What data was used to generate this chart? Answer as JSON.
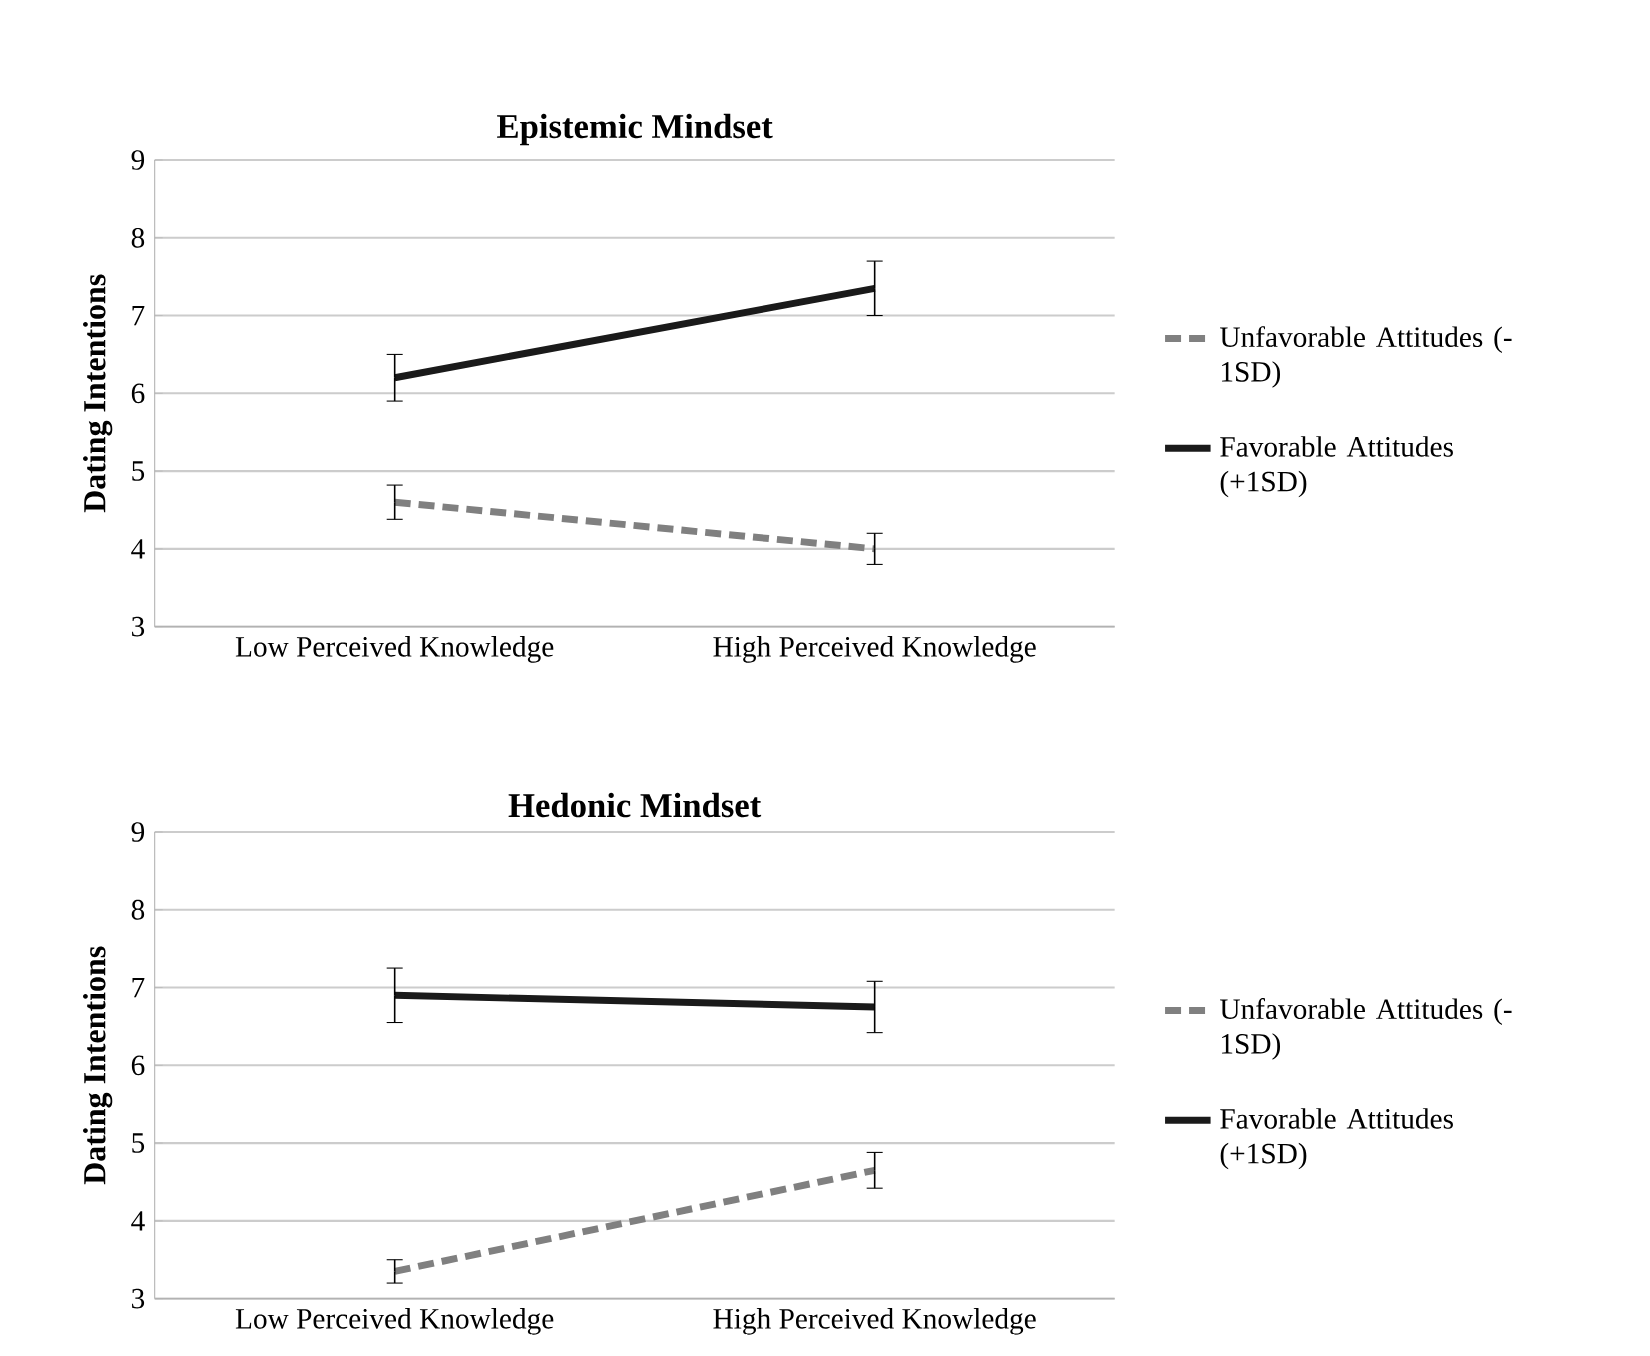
{
  "chart_data": [
    {
      "type": "line",
      "title": "Epistemic Mindset",
      "ylabel": "Dating Intentions",
      "categories": [
        "Low Perceived Knowledge",
        "High Perceived Knowledge"
      ],
      "ylim": [
        3,
        9
      ],
      "yticks": [
        3,
        4,
        5,
        6,
        7,
        8,
        9
      ],
      "grid": "y",
      "legend": "right",
      "marker": "none",
      "series": [
        {
          "name": "Unfavorable Attitudes (-1SD)",
          "color": "#808080",
          "line_style": "dashed",
          "values": [
            4.6,
            4.0
          ],
          "errors": [
            0.22,
            0.2
          ]
        },
        {
          "name": "Favorable Attitudes (+1SD)",
          "color": "#1a1a1a",
          "line_style": "solid",
          "values": [
            6.2,
            7.35
          ],
          "errors": [
            0.3,
            0.35
          ]
        }
      ]
    },
    {
      "type": "line",
      "title": "Hedonic Mindset",
      "ylabel": "Dating Intentions",
      "categories": [
        "Low Perceived Knowledge",
        "High Perceived Knowledge"
      ],
      "ylim": [
        3,
        9
      ],
      "yticks": [
        3,
        4,
        5,
        6,
        7,
        8,
        9
      ],
      "grid": "y",
      "legend": "right",
      "marker": "none",
      "series": [
        {
          "name": "Unfavorable Attitudes (-1SD)",
          "color": "#808080",
          "line_style": "dashed",
          "values": [
            3.35,
            4.65
          ],
          "errors": [
            0.15,
            0.23
          ]
        },
        {
          "name": "Favorable Attitudes (+1SD)",
          "color": "#1a1a1a",
          "line_style": "solid",
          "values": [
            6.9,
            6.75
          ],
          "errors": [
            0.35,
            0.33
          ]
        }
      ]
    }
  ]
}
